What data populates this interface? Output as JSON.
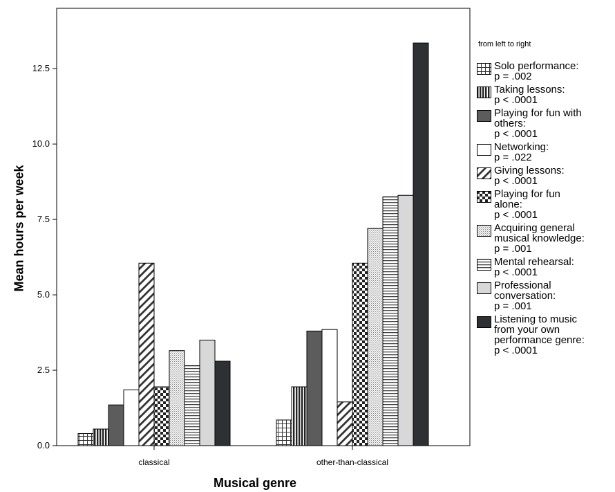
{
  "chart_data": {
    "type": "bar",
    "xlabel": "Musical genre",
    "ylabel": "Mean hours per week",
    "ylim": [
      0,
      14.5
    ],
    "yticks": [
      "0.0",
      "2.5",
      "5.0",
      "7.5",
      "10.0",
      "12.5"
    ],
    "ytick_values": [
      0,
      2.5,
      5,
      7.5,
      10,
      12.5
    ],
    "categories": [
      "classical",
      "other-than-classical"
    ],
    "legend_title": "from left to right",
    "legend_position": "right",
    "grid": false,
    "series": [
      {
        "name": "Solo performance: p = .002",
        "lines": [
          "Solo performance:",
          "p = .002"
        ],
        "pattern": "grid",
        "values": [
          0.4,
          0.85
        ]
      },
      {
        "name": "Taking lessons: p < .0001",
        "lines": [
          "Taking lessons:",
          "p < .0001"
        ],
        "pattern": "vertical-lines",
        "values": [
          0.55,
          1.95
        ]
      },
      {
        "name": "Playing for fun with others: p < .0001",
        "lines": [
          "Playing for fun with",
          "others:",
          "p < .0001"
        ],
        "pattern": "solid-gray",
        "values": [
          1.35,
          3.8
        ]
      },
      {
        "name": "Networking: p = .022",
        "lines": [
          "Networking:",
          "p = .022"
        ],
        "pattern": "white",
        "values": [
          1.85,
          3.85
        ]
      },
      {
        "name": "Giving lessons: p < .0001",
        "lines": [
          "Giving lessons:",
          "p < .0001"
        ],
        "pattern": "diagonal",
        "values": [
          6.05,
          1.45
        ]
      },
      {
        "name": "Playing for fun alone: p < .0001",
        "lines": [
          "Playing for fun",
          "alone:",
          "p < .0001"
        ],
        "pattern": "checker",
        "values": [
          1.95,
          6.05
        ]
      },
      {
        "name": "Acquiring general musical knowledge: p = .001",
        "lines": [
          "Acquiring general",
          "musical knowledge:",
          "p = .001"
        ],
        "pattern": "dots",
        "values": [
          3.15,
          7.2
        ]
      },
      {
        "name": "Mental rehearsal: p < .0001",
        "lines": [
          "Mental rehearsal:",
          "p < .0001"
        ],
        "pattern": "horizontal-lines",
        "values": [
          2.65,
          8.25
        ]
      },
      {
        "name": "Professional conversation: p = .001",
        "lines": [
          "Professional",
          "conversation:",
          "p = .001"
        ],
        "pattern": "light-gray",
        "values": [
          3.5,
          8.3
        ]
      },
      {
        "name": "Listening to music from your own performance genre: p < .0001",
        "lines": [
          "Listening to music",
          "from your own",
          "performance genre:",
          "p < .0001"
        ],
        "pattern": "dark",
        "values": [
          2.8,
          13.35
        ]
      }
    ]
  }
}
